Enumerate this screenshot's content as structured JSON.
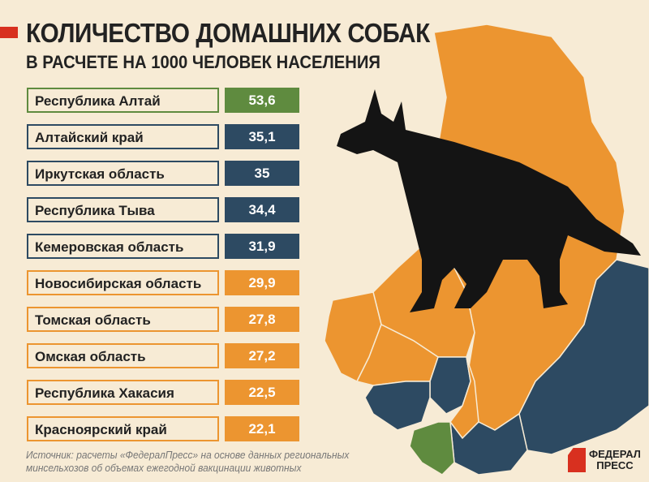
{
  "title": "КОЛИЧЕСТВО ДОМАШНИХ СОБАК",
  "subtitle": "В РАСЧЕТЕ НА 1000 ЧЕЛОВЕК НАСЕЛЕНИЯ",
  "colors": {
    "green": "#5f8b3f",
    "navy": "#2d4a62",
    "orange": "#ec9530",
    "background": "#f7ebd5",
    "accent": "#d8301f"
  },
  "chart_data": {
    "type": "table",
    "title": "КОЛИЧЕСТВО ДОМАШНИХ СОБАК В РАСЧЕТЕ НА 1000 ЧЕЛОВЕК НАСЕЛЕНИЯ",
    "categories": [
      "Республика Алтай",
      "Алтайский край",
      "Иркутская область",
      "Республика Тыва",
      "Кемеровская область",
      "Новосибирская область",
      "Томская область",
      "Омская область",
      "Республика Хакасия",
      "Красноярский край"
    ],
    "labels": [
      "53,6",
      "35,1",
      "35",
      "34,4",
      "31,9",
      "29,9",
      "27,8",
      "27,2",
      "22,5",
      "22,1"
    ],
    "values": [
      53.6,
      35.1,
      35,
      34.4,
      31.9,
      29.9,
      27.8,
      27.2,
      22.5,
      22.1
    ],
    "groups": [
      "green",
      "navy",
      "navy",
      "navy",
      "navy",
      "orange",
      "orange",
      "orange",
      "orange",
      "orange"
    ]
  },
  "source": [
    "Источник: расчеты «ФедералПресс» на основе данных региональных",
    "минсельхозов об объемах ежегодной вакцинации животных"
  ],
  "logo": [
    "ФЕДЕРАЛ",
    "ПРЕСС"
  ]
}
